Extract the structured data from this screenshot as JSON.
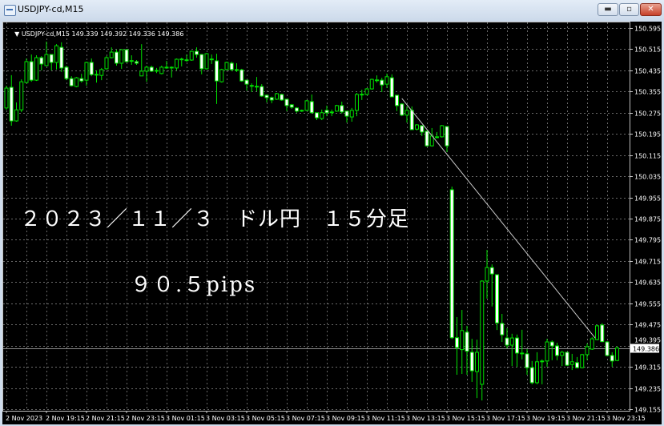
{
  "window": {
    "title": "USDJPY-cd,M15",
    "buttons": [
      "minimize",
      "maximize",
      "close"
    ],
    "button_glyphs": {
      "minimize": "▬",
      "maximize": "▫",
      "close": "✕"
    }
  },
  "header": {
    "symbol": "USDJPY-cd,M15",
    "ohlc": "149.339 149.392 149.336 149.386"
  },
  "annotations": {
    "title": "２０２３／１１／３　ドル円　１５分足",
    "pips": "９０.５pips"
  },
  "colors": {
    "background": "#000000",
    "candle_outline": "#00e000",
    "bull_fill": "#000000",
    "bear_fill": "#ffffff",
    "grid": "#6a6a6a",
    "axis_text": "#ffffff",
    "trendline": "#c8c8c8",
    "price_line": "#8c8c8c"
  },
  "chart_data": {
    "type": "candlestick",
    "symbol": "USDJPY-cd",
    "timeframe": "M15",
    "grid": true,
    "ylim": [
      149.155,
      150.595
    ],
    "y_ticks": [
      "150.595",
      "150.515",
      "150.435",
      "150.355",
      "150.275",
      "150.195",
      "150.115",
      "150.035",
      "149.955",
      "149.875",
      "149.795",
      "149.715",
      "149.635",
      "149.555",
      "149.475",
      "149.395",
      "149.315",
      "149.235",
      "149.155"
    ],
    "x_ticks": [
      "2 Nov 2023",
      "2 Nov 19:15",
      "2 Nov 21:15",
      "2 Nov 23:15",
      "3 Nov 01:15",
      "3 Nov 03:15",
      "3 Nov 05:15",
      "3 Nov 07:15",
      "3 Nov 09:15",
      "3 Nov 11:15",
      "3 Nov 13:15",
      "3 Nov 15:15",
      "3 Nov 17:15",
      "3 Nov 19:15",
      "3 Nov 21:15",
      "3 Nov 23:15"
    ],
    "current_price": "149.386",
    "trendline": {
      "from": {
        "time": "3 Nov 13:00",
        "price": 150.329
      },
      "to": {
        "time": "3 Nov 22:45",
        "price": 149.424
      }
    },
    "first_bar_time": "2 Nov 17:15",
    "bar_minutes": 15,
    "ohlc": [
      [
        150.293,
        150.377,
        150.286,
        150.368
      ],
      [
        150.371,
        150.417,
        150.226,
        150.244
      ],
      [
        150.244,
        150.314,
        150.241,
        150.286
      ],
      [
        150.286,
        150.401,
        150.277,
        150.392
      ],
      [
        150.389,
        150.48,
        150.386,
        150.468
      ],
      [
        150.468,
        150.495,
        150.392,
        150.398
      ],
      [
        150.398,
        150.492,
        150.395,
        150.483
      ],
      [
        150.483,
        150.489,
        150.435,
        150.459
      ],
      [
        150.453,
        150.544,
        150.453,
        150.495
      ],
      [
        150.495,
        150.495,
        150.435,
        150.465
      ],
      [
        150.465,
        150.534,
        150.438,
        150.528
      ],
      [
        150.522,
        150.541,
        150.429,
        150.444
      ],
      [
        150.447,
        150.453,
        150.398,
        150.404
      ],
      [
        150.404,
        150.413,
        150.374,
        150.377
      ],
      [
        150.374,
        150.41,
        150.371,
        150.407
      ],
      [
        150.404,
        150.422,
        150.389,
        150.395
      ],
      [
        150.398,
        150.468,
        150.377,
        150.465
      ],
      [
        150.465,
        150.48,
        150.413,
        150.419
      ],
      [
        150.42,
        150.435,
        150.389,
        150.419
      ],
      [
        150.416,
        150.444,
        150.398,
        150.438
      ],
      [
        150.441,
        150.489,
        150.438,
        150.483
      ],
      [
        150.483,
        150.522,
        150.48,
        150.504
      ],
      [
        150.504,
        150.513,
        150.453,
        150.462
      ],
      [
        150.462,
        150.516,
        150.441,
        150.513
      ],
      [
        150.513,
        150.516,
        150.465,
        150.468
      ],
      [
        150.472,
        150.492,
        150.456,
        150.471
      ],
      [
        150.468,
        150.474,
        150.456,
        150.462
      ],
      [
        150.414,
        150.534,
        150.414,
        150.432
      ],
      [
        150.432,
        150.453,
        150.392,
        150.447
      ],
      [
        150.447,
        150.453,
        150.429,
        150.432
      ],
      [
        150.435,
        150.444,
        150.425,
        150.434
      ],
      [
        150.423,
        150.453,
        150.42,
        150.447
      ],
      [
        150.447,
        150.471,
        150.441,
        150.446
      ],
      [
        150.446,
        150.45,
        150.408,
        150.447
      ],
      [
        150.444,
        150.48,
        150.435,
        150.477
      ],
      [
        150.477,
        150.483,
        150.45,
        150.478
      ],
      [
        150.474,
        150.495,
        150.468,
        150.475
      ],
      [
        150.474,
        150.51,
        150.471,
        150.507
      ],
      [
        150.507,
        150.522,
        150.483,
        150.495
      ],
      [
        150.495,
        150.497,
        150.42,
        150.441
      ],
      [
        150.441,
        150.501,
        150.438,
        150.498
      ],
      [
        150.478,
        150.495,
        150.459,
        150.477
      ],
      [
        150.471,
        150.498,
        150.308,
        150.395
      ],
      [
        150.392,
        150.441,
        150.389,
        150.438
      ],
      [
        150.438,
        150.468,
        150.435,
        150.465
      ],
      [
        150.462,
        150.468,
        150.432,
        150.438
      ],
      [
        150.438,
        150.462,
        150.429,
        150.437
      ],
      [
        150.437,
        150.441,
        150.392,
        150.395
      ],
      [
        150.398,
        150.4,
        150.359,
        150.383
      ],
      [
        150.378,
        150.386,
        150.353,
        150.377
      ],
      [
        150.375,
        150.41,
        150.356,
        150.374
      ],
      [
        150.374,
        150.383,
        150.335,
        150.338
      ],
      [
        150.341,
        150.344,
        150.314,
        150.332
      ],
      [
        150.332,
        150.336,
        150.311,
        150.323
      ],
      [
        150.326,
        150.35,
        150.323,
        150.347
      ],
      [
        150.344,
        150.347,
        150.32,
        150.323
      ],
      [
        150.326,
        150.327,
        150.281,
        150.302
      ],
      [
        150.305,
        150.308,
        150.29,
        150.296
      ],
      [
        150.293,
        150.296,
        150.275,
        150.281
      ],
      [
        150.284,
        150.287,
        150.278,
        150.283
      ],
      [
        150.284,
        150.323,
        150.281,
        150.32
      ],
      [
        150.317,
        150.344,
        150.272,
        150.275
      ],
      [
        150.275,
        150.275,
        150.247,
        150.256
      ],
      [
        150.253,
        150.287,
        150.247,
        150.275
      ],
      [
        150.284,
        150.302,
        150.262,
        150.275
      ],
      [
        150.278,
        150.287,
        150.262,
        150.277
      ],
      [
        150.281,
        150.305,
        150.278,
        150.302
      ],
      [
        150.302,
        150.317,
        150.272,
        150.278
      ],
      [
        150.281,
        150.281,
        150.238,
        150.262
      ],
      [
        150.259,
        150.293,
        150.241,
        150.284
      ],
      [
        150.284,
        150.35,
        150.262,
        150.344
      ],
      [
        150.345,
        150.362,
        150.323,
        150.344
      ],
      [
        150.344,
        150.368,
        150.341,
        150.365
      ],
      [
        150.365,
        150.404,
        150.362,
        150.401
      ],
      [
        150.399,
        150.416,
        150.389,
        150.398
      ],
      [
        150.398,
        150.407,
        150.353,
        150.38
      ],
      [
        150.383,
        150.423,
        150.368,
        150.411
      ],
      [
        150.407,
        150.42,
        150.335,
        150.335
      ],
      [
        150.341,
        150.341,
        150.281,
        150.302
      ],
      [
        150.308,
        150.311,
        150.262,
        150.266
      ],
      [
        150.266,
        150.299,
        150.238,
        150.284
      ],
      [
        150.284,
        150.299,
        150.211,
        150.211
      ],
      [
        150.213,
        150.232,
        150.208,
        150.229
      ],
      [
        150.226,
        150.226,
        150.187,
        150.202
      ],
      [
        150.205,
        150.208,
        150.147,
        150.15
      ],
      [
        150.15,
        150.217,
        150.147,
        150.187
      ],
      [
        150.184,
        150.202,
        150.178,
        150.183
      ],
      [
        150.184,
        150.229,
        150.181,
        150.226
      ],
      [
        150.223,
        150.223,
        150.126,
        150.15
      ],
      [
        149.984,
        149.996,
        149.42,
        149.425
      ],
      [
        149.425,
        149.503,
        149.285,
        149.388
      ],
      [
        149.38,
        149.53,
        149.288,
        149.452
      ],
      [
        149.446,
        149.47,
        149.285,
        149.374
      ],
      [
        149.37,
        149.421,
        149.258,
        149.3
      ],
      [
        149.297,
        149.418,
        149.197,
        149.37
      ],
      [
        149.249,
        149.642,
        149.188,
        149.639
      ],
      [
        149.639,
        149.757,
        149.573,
        149.69
      ],
      [
        149.69,
        149.702,
        149.543,
        149.666
      ],
      [
        149.663,
        149.663,
        149.454,
        149.481
      ],
      [
        149.479,
        149.515,
        149.409,
        149.436
      ],
      [
        149.424,
        149.461,
        149.385,
        149.397
      ],
      [
        149.397,
        149.44,
        149.318,
        149.424
      ],
      [
        149.424,
        149.437,
        149.315,
        149.367
      ],
      [
        149.367,
        149.455,
        149.343,
        149.366
      ],
      [
        149.364,
        149.382,
        149.285,
        149.312
      ],
      [
        149.312,
        149.337,
        149.249,
        149.255
      ],
      [
        149.255,
        149.37,
        149.249,
        149.334
      ],
      [
        149.337,
        149.343,
        149.249,
        149.336
      ],
      [
        149.337,
        149.421,
        149.315,
        149.409
      ],
      [
        149.409,
        149.415,
        149.34,
        149.394
      ],
      [
        149.394,
        149.406,
        149.34,
        149.358
      ],
      [
        149.358,
        149.376,
        149.318,
        149.37
      ],
      [
        149.37,
        149.37,
        149.318,
        149.321
      ],
      [
        149.324,
        149.364,
        149.303,
        149.334
      ],
      [
        149.331,
        149.352,
        149.309,
        149.312
      ],
      [
        149.312,
        149.364,
        149.309,
        149.361
      ],
      [
        149.361,
        149.403,
        149.34,
        149.391
      ],
      [
        149.382,
        149.427,
        149.379,
        149.421
      ],
      [
        149.418,
        149.473,
        149.415,
        149.47
      ],
      [
        149.473,
        149.48,
        149.41,
        149.41
      ],
      [
        149.409,
        149.412,
        149.355,
        149.358
      ],
      [
        149.358,
        149.37,
        149.315,
        149.337
      ],
      [
        149.339,
        149.392,
        149.336,
        149.386
      ]
    ]
  }
}
